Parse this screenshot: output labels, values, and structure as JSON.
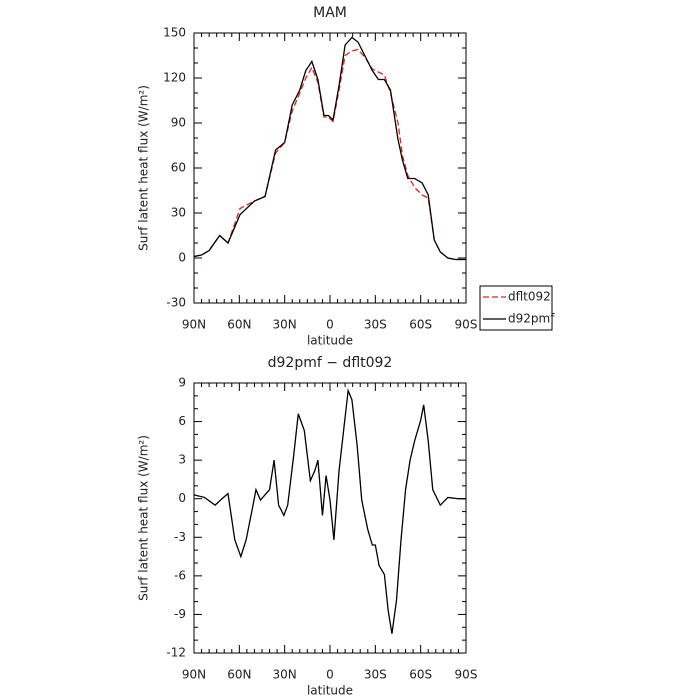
{
  "chart_data": [
    {
      "type": "line",
      "title": "MAM",
      "x_label": "latitude",
      "y_label": "Surf latent heat flux (W/m²)",
      "x": [
        90,
        85,
        80,
        73,
        67.5,
        59.5,
        50,
        43,
        36,
        30,
        25,
        20,
        16,
        12,
        8,
        4,
        1,
        -2,
        -6,
        -10,
        -14.5,
        -18.5,
        -23,
        -28,
        -32,
        -36,
        -40,
        -45,
        -48,
        -51.5,
        -56,
        -61,
        -65,
        -69,
        -73,
        -78,
        -83,
        -90
      ],
      "series": [
        {
          "name": "dflt092",
          "color": "#e8201c",
          "dashed": true,
          "values": [
            1,
            2,
            5,
            15,
            10,
            33,
            38,
            41,
            70,
            77,
            98,
            110,
            120,
            127,
            117,
            94,
            94,
            91,
            112,
            135,
            138,
            139,
            134,
            126,
            124,
            122,
            110,
            90,
            68,
            55,
            47,
            42,
            40,
            12,
            4,
            0,
            -1,
            -1
          ]
        },
        {
          "name": "d92pmf",
          "color": "#000000",
          "dashed": false,
          "values": [
            1,
            2,
            5,
            15,
            10,
            29,
            38,
            41,
            72,
            77,
            102,
            112,
            125,
            131,
            119,
            95,
            95,
            92,
            115,
            142,
            147,
            144,
            135,
            125,
            119,
            119,
            112,
            79,
            65,
            53,
            53,
            50,
            42,
            12,
            4,
            0,
            -1,
            -1
          ]
        }
      ],
      "xlim": [
        90,
        -90
      ],
      "xticks": [
        {
          "value": 90,
          "label": "90N"
        },
        {
          "value": 60,
          "label": "60N"
        },
        {
          "value": 30,
          "label": "30N"
        },
        0,
        {
          "value": -30,
          "label": "30S"
        },
        {
          "value": -60,
          "label": "60S"
        },
        {
          "value": -90,
          "label": "90S"
        }
      ],
      "ylim": [
        -30,
        150
      ],
      "yticks": [
        -30,
        0,
        30,
        60,
        90,
        120,
        150
      ],
      "legend": "right"
    },
    {
      "type": "line",
      "title": "d92pmf − dflt092",
      "x_label": "latitude",
      "y_label": "Surf latent heat flux (W/m²)",
      "x": [
        90,
        83,
        76,
        71.5,
        67.5,
        63,
        59,
        55.5,
        51.6,
        49,
        46,
        43,
        40,
        37,
        34,
        30.5,
        28,
        24,
        21,
        17,
        13,
        10,
        8,
        5,
        2.6,
        0,
        -2.6,
        -6,
        -9,
        -12,
        -14.5,
        -18,
        -21,
        -25,
        -28,
        -30,
        -32.5,
        -36,
        -38.5,
        -41,
        -44,
        -47,
        -50,
        -53,
        -56,
        -60,
        -62,
        -65,
        -68,
        -73,
        -78,
        -85,
        -90
      ],
      "values": [
        0.3,
        0.1,
        -0.5,
        0,
        0.4,
        -3.2,
        -4.5,
        -3.2,
        -0.9,
        0.7,
        -0.1,
        0.3,
        0.7,
        3,
        -0.5,
        -1.3,
        -0.5,
        3.4,
        6.6,
        5.3,
        1.4,
        2.2,
        3,
        -1.3,
        1.8,
        -0.1,
        -3.2,
        2.2,
        5.3,
        8.4,
        7.7,
        4.1,
        -0.1,
        -2.4,
        -3.6,
        -3.6,
        -5.2,
        -5.9,
        -8.7,
        -10.5,
        -7.9,
        -3.2,
        0.7,
        3,
        4.5,
        6.1,
        7.3,
        4.5,
        0.7,
        -0.5,
        0.1,
        0,
        0
      ],
      "color": "#000000",
      "xlim": [
        90,
        -90
      ],
      "xticks": [
        {
          "value": 90,
          "label": "90N"
        },
        {
          "value": 60,
          "label": "60N"
        },
        {
          "value": 30,
          "label": "30N"
        },
        0,
        {
          "value": -30,
          "label": "30S"
        },
        {
          "value": -60,
          "label": "60S"
        },
        {
          "value": -90,
          "label": "90S"
        }
      ],
      "ylim": [
        -12,
        9
      ],
      "yticks": [
        -12,
        -9,
        -6,
        -3,
        0,
        3,
        6,
        9
      ]
    }
  ]
}
